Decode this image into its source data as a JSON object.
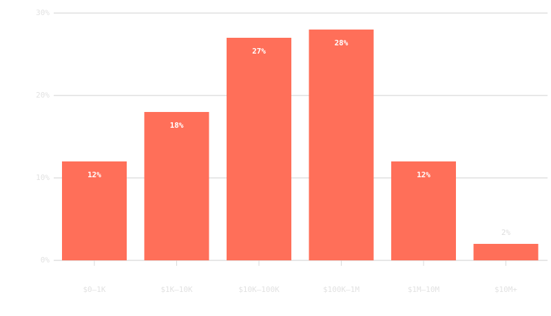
{
  "chart_data": {
    "type": "bar",
    "categories": [
      "$0–1K",
      "$1K–10K",
      "$10K–100K",
      "$100K–1M",
      "$1M–10M",
      "$10M+"
    ],
    "values": [
      12,
      18,
      27,
      28,
      12,
      2
    ],
    "value_labels": [
      "12%",
      "18%",
      "27%",
      "28%",
      "12%",
      "2%"
    ],
    "color": "#ff6f59",
    "ylim": [
      0,
      30
    ],
    "yticks": [
      {
        "value": 0,
        "label": "0%"
      },
      {
        "value": 10,
        "label": "10%"
      },
      {
        "value": 20,
        "label": "20%"
      },
      {
        "value": 30,
        "label": "30%"
      }
    ],
    "grid": true
  }
}
